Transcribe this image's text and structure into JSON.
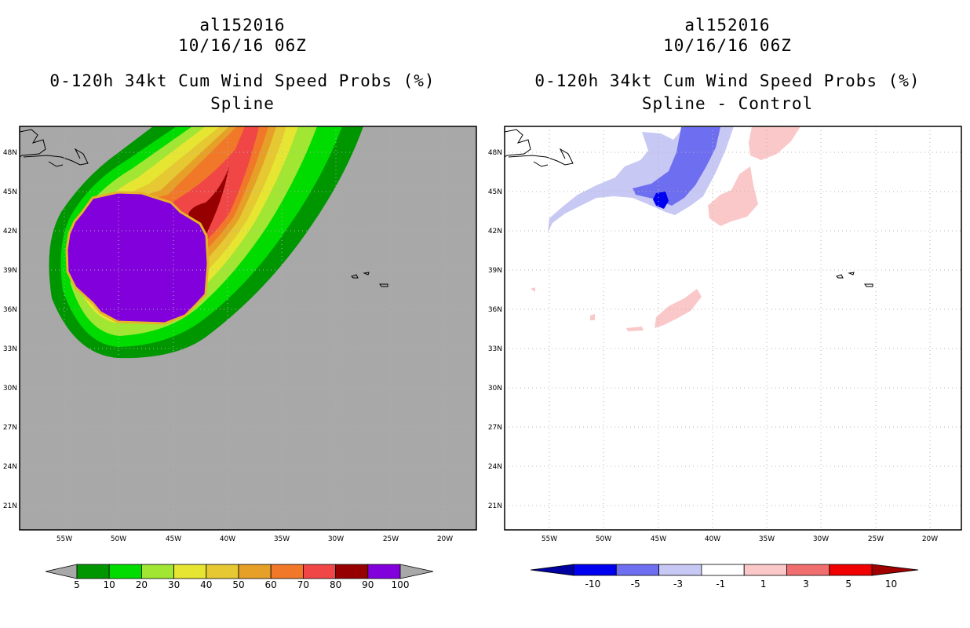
{
  "chart_data": [
    {
      "type": "heatmap",
      "panel": "left",
      "title_lines": [
        "al152016",
        "10/16/16 06Z",
        "0-120h 34kt Cum Wind Speed Probs (%)",
        "Spline"
      ],
      "lat_ticks": [
        "48N",
        "45N",
        "42N",
        "39N",
        "36N",
        "33N",
        "30N",
        "27N",
        "24N",
        "21N"
      ],
      "lon_ticks": [
        "55W",
        "50W",
        "45W",
        "40W",
        "35W",
        "30W",
        "25W",
        "20W"
      ],
      "xlim": [
        -58.8,
        -17.2
      ],
      "ylim": [
        19.2,
        50.2
      ],
      "background_color": "#a8a8a8",
      "colorbar": {
        "labels": [
          "5",
          "10",
          "20",
          "30",
          "40",
          "50",
          "60",
          "70",
          "80",
          "90",
          "100"
        ],
        "colors": [
          "#009600",
          "#00dc00",
          "#a0e632",
          "#e6e632",
          "#e6c832",
          "#e6a028",
          "#f07828",
          "#f04646",
          "#960000",
          "#8200dc"
        ]
      },
      "contour_levels": [
        5,
        10,
        20,
        30,
        40,
        50,
        60,
        70,
        80,
        90,
        100
      ]
    },
    {
      "type": "heatmap",
      "panel": "right",
      "title_lines": [
        "al152016",
        "10/16/16 06Z",
        "0-120h 34kt Cum Wind Speed Probs (%)",
        "Spline - Control"
      ],
      "lat_ticks": [
        "48N",
        "45N",
        "42N",
        "39N",
        "36N",
        "33N",
        "30N",
        "27N",
        "24N",
        "21N"
      ],
      "lon_ticks": [
        "55W",
        "50W",
        "45W",
        "40W",
        "35W",
        "30W",
        "25W",
        "20W"
      ],
      "xlim": [
        -58.8,
        -17.2
      ],
      "ylim": [
        19.2,
        50.2
      ],
      "background_color": "#ffffff",
      "colorbar": {
        "labels": [
          "-10",
          "-5",
          "-3",
          "-1",
          "1",
          "3",
          "5",
          "10"
        ],
        "colors": [
          "#0000a0",
          "#0000f0",
          "#6e6ef0",
          "#c8c8f5",
          "#ffffff",
          "#fac8c8",
          "#f06e6e",
          "#f00000",
          "#a00000"
        ]
      }
    }
  ]
}
